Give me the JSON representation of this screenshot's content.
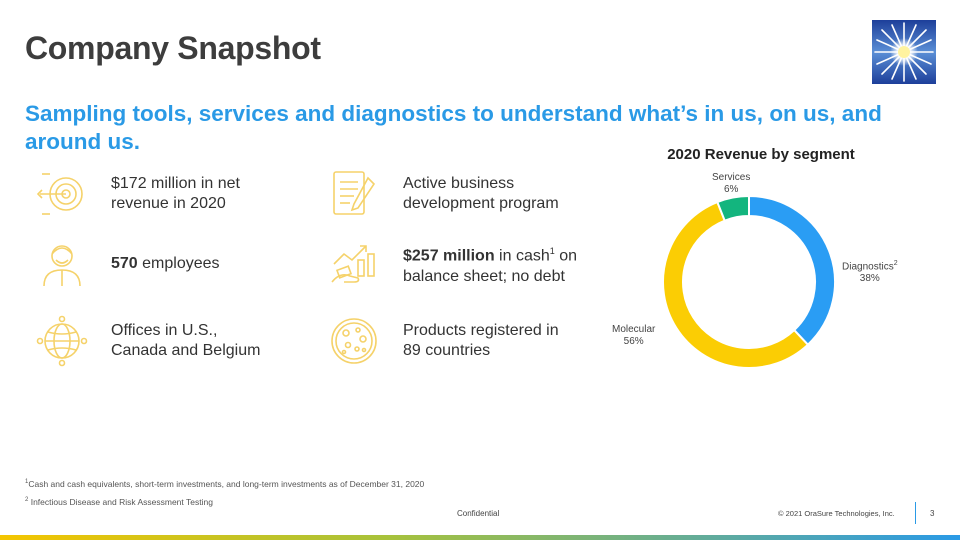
{
  "header": {
    "title": "Company Snapshot",
    "logo_icon": "sunburst-logo-icon"
  },
  "subtitle": "Sampling tools, services and diagnostics to understand what’s in us, on us, and around us.",
  "facts": [
    {
      "icon": "target-icon",
      "line1": "$172 million in net",
      "line2": "revenue in 2020"
    },
    {
      "icon": "document-pen-icon",
      "line1": "Active business",
      "line2": "development program"
    },
    {
      "icon": "employee-icon",
      "bold": "570",
      "rest": " employees"
    },
    {
      "icon": "money-growth-icon",
      "bold": "$257 million",
      "rest": " in cash",
      "sup": "1",
      "rest2": " on",
      "line2": "balance sheet; no debt"
    },
    {
      "icon": "globe-icon",
      "line1": "Offices in U.S.,",
      "line2": "Canada and Belgium"
    },
    {
      "icon": "petri-dish-icon",
      "line1": "Products registered in",
      "line2": "89 countries"
    }
  ],
  "chart_data": {
    "type": "pie",
    "title": "2020 Revenue by segment",
    "donut": true,
    "slices": [
      {
        "name": "Diagnostics",
        "sup": "2",
        "value": 38,
        "label": "38%",
        "color": "#2a9df4"
      },
      {
        "name": "Molecular",
        "sup": "",
        "value": 56,
        "label": "56%",
        "color": "#fbcd04"
      },
      {
        "name": "Services",
        "sup": "",
        "value": 6,
        "label": "6%",
        "color": "#13b57e"
      }
    ]
  },
  "footnotes": [
    {
      "sup": "1",
      "text": "Cash and cash equivalents, short-term investments, and long-term investments as of December 31, 2020"
    },
    {
      "sup": "2",
      "text": " Infectious Disease and Risk Assessment Testing"
    }
  ],
  "footer": {
    "confidential": "Confidential",
    "copyright": "© 2021 OraSure Technologies, Inc.",
    "page": "3"
  },
  "colors": {
    "accent": "#2a9ae6",
    "icon": "#f5d26a"
  }
}
